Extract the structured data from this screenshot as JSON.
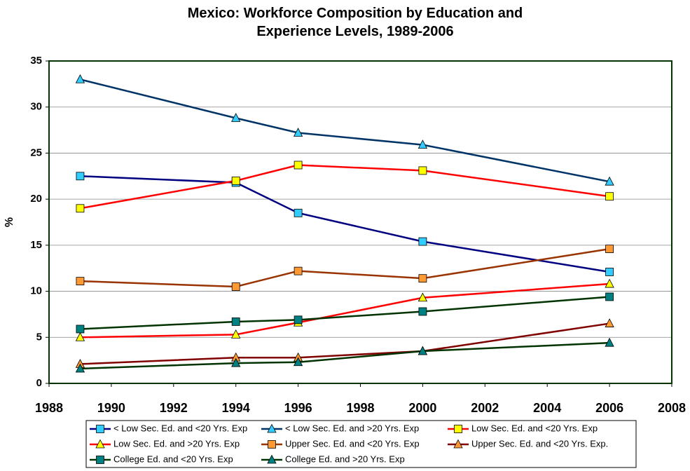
{
  "chart_data": {
    "type": "line",
    "title": "Mexico: Workforce Composition by Education and Experience Levels, 1989-2006",
    "y_label": "%",
    "x": [
      1989,
      1994,
      1996,
      2000,
      2006
    ],
    "xlim": [
      1988,
      2008
    ],
    "xticks": [
      1988,
      1990,
      1992,
      1994,
      1996,
      1998,
      2000,
      2002,
      2004,
      2006,
      2008
    ],
    "ylim": [
      0,
      35
    ],
    "yticks": [
      0,
      5,
      10,
      15,
      20,
      25,
      30,
      35
    ],
    "grid": true,
    "legend": "bottom",
    "series": [
      {
        "name": "< Low Sec. Ed. and <20 Yrs. Exp",
        "color": "#000080",
        "marker": "square",
        "marker_color": "#33ccff",
        "values": [
          22.5,
          21.8,
          18.5,
          15.4,
          12.1
        ]
      },
      {
        "name": "< Low Sec. Ed. and >20 Yrs. Exp",
        "color": "#003366",
        "marker": "triangle",
        "marker_color": "#33ccff",
        "values": [
          33,
          28.8,
          27.2,
          25.9,
          21.9
        ]
      },
      {
        "name": "Low Sec. Ed. and <20 Yrs. Exp",
        "color": "#ff0000",
        "marker": "square",
        "marker_color": "#ffff00",
        "values": [
          19,
          22,
          23.7,
          23.1,
          20.3
        ]
      },
      {
        "name": "Low Sec. Ed. and >20 Yrs. Exp",
        "color": "#ff0000",
        "marker": "triangle",
        "marker_color": "#ffff00",
        "values": [
          5,
          5.3,
          6.6,
          9.3,
          10.8
        ]
      },
      {
        "name": "Upper Sec. Ed. and <20 Yrs. Exp",
        "color": "#993300",
        "marker": "square",
        "marker_color": "#ff9933",
        "values": [
          11.1,
          10.5,
          12.2,
          11.4,
          14.6
        ]
      },
      {
        "name": "Upper Sec. Ed. and <20 Yrs. Exp.",
        "color": "#800000",
        "marker": "triangle",
        "marker_color": "#ff9933",
        "values": [
          2.1,
          2.8,
          2.8,
          3.5,
          6.5
        ]
      },
      {
        "name": "College Ed. and <20 Yrs. Exp",
        "color": "#003300",
        "marker": "square",
        "marker_color": "#008080",
        "values": [
          5.9,
          6.7,
          6.9,
          7.8,
          9.4
        ]
      },
      {
        "name": "College Ed. and >20 Yrs. Exp",
        "color": "#003300",
        "marker": "triangle",
        "marker_color": "#008080",
        "values": [
          1.6,
          2.2,
          2.3,
          3.5,
          4.4
        ]
      }
    ]
  }
}
